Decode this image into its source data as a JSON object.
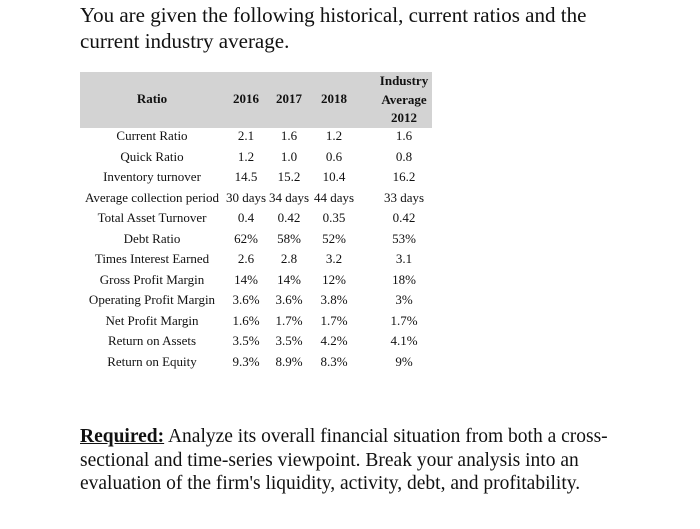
{
  "intro": "You are given the following historical, current ratios and the current industry average.",
  "table": {
    "header": {
      "ratio": "Ratio",
      "years": [
        "2016",
        "2017",
        "2018"
      ],
      "industry": [
        "Industry",
        "Average",
        "2012"
      ]
    },
    "rows": [
      [
        "Current Ratio",
        "2.1",
        "1.6",
        "1.2",
        "1.6"
      ],
      [
        "Quick Ratio",
        "1.2",
        "1.0",
        "0.6",
        "0.8"
      ],
      [
        "Inventory turnover",
        "14.5",
        "15.2",
        "10.4",
        "16.2"
      ],
      [
        "Average collection period",
        "30 days",
        "34 days",
        "44 days",
        "33 days"
      ],
      [
        "Total Asset Turnover",
        "0.4",
        "0.42",
        "0.35",
        "0.42"
      ],
      [
        "Debt Ratio",
        "62%",
        "58%",
        "52%",
        "53%"
      ],
      [
        "Times Interest Earned",
        "2.6",
        "2.8",
        "3.2",
        "3.1"
      ],
      [
        "Gross Profit Margin",
        "14%",
        "14%",
        "12%",
        "18%"
      ],
      [
        "Operating Profit Margin",
        "3.6%",
        "3.6%",
        "3.8%",
        "3%"
      ],
      [
        "Net Profit Margin",
        "1.6%",
        "1.7%",
        "1.7%",
        "1.7%"
      ],
      [
        "Return on Assets",
        "3.5%",
        "3.5%",
        "4.2%",
        "4.1%"
      ],
      [
        "Return on Equity",
        "9.3%",
        "8.9%",
        "8.3%",
        "9%"
      ]
    ]
  },
  "required": {
    "label": "Required:",
    "text": "Analyze its overall financial situation from both a cross-sectional and time-series viewpoint. Break your analysis into an evaluation of the firm's liquidity, activity, debt, and profitability."
  }
}
